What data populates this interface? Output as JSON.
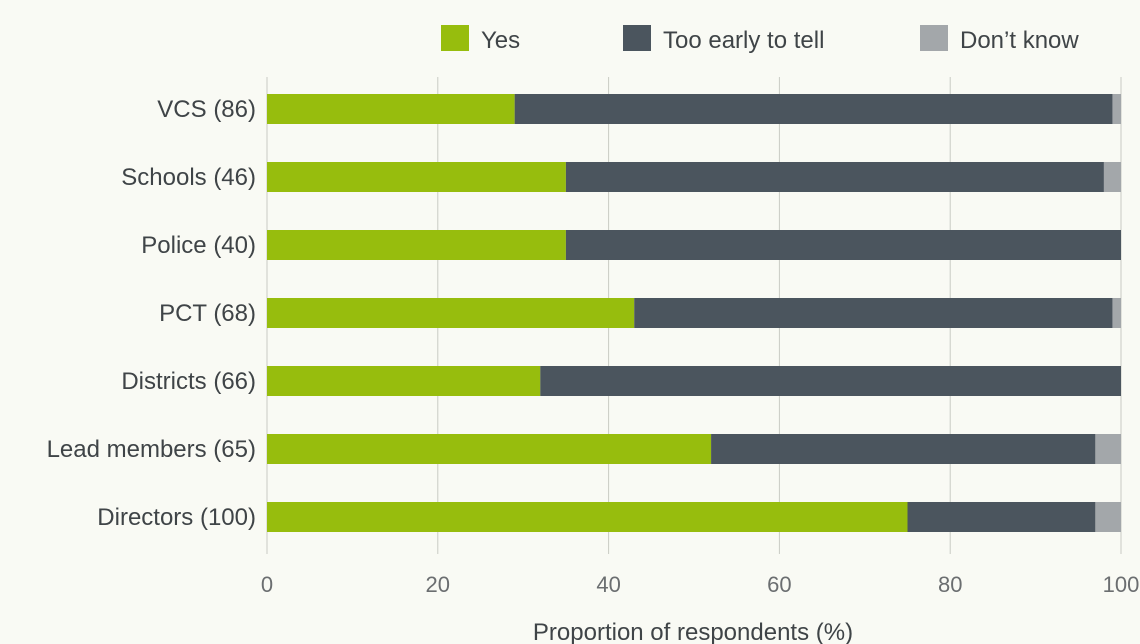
{
  "chart_data": {
    "type": "bar",
    "orientation": "horizontal",
    "stacked": true,
    "categories": [
      "VCS (86)",
      "Schools (46)",
      "Police (40)",
      "PCT (68)",
      "Districts (66)",
      "Lead members (65)",
      "Directors (100)"
    ],
    "series": [
      {
        "name": "Yes",
        "color": "#97bd0d",
        "values": [
          29,
          35,
          35,
          43,
          32,
          52,
          75
        ]
      },
      {
        "name": "Too early to tell",
        "color": "#4b555e",
        "values": [
          70,
          63,
          65,
          56,
          68,
          45,
          22
        ]
      },
      {
        "name": "Don’t know",
        "color": "#a3a7aa",
        "values": [
          1,
          2,
          0,
          1,
          0,
          3,
          3
        ]
      }
    ],
    "xlabel": "Proportion of respondents (%)",
    "ylabel": "",
    "xlim": [
      0,
      100
    ],
    "xticks": [
      "0",
      "20",
      "40",
      "60",
      "80",
      "100"
    ],
    "grid": true,
    "legend_position": "top-right"
  }
}
